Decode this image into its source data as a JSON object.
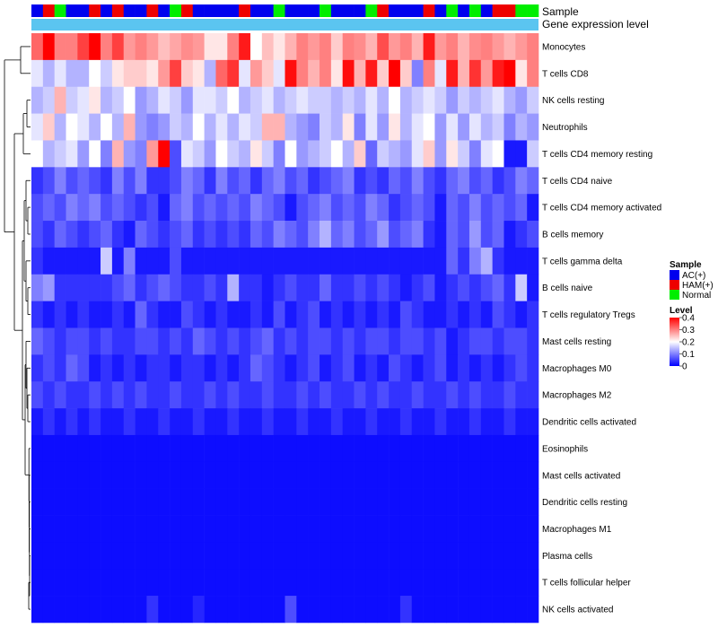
{
  "chart_data": {
    "type": "heatmap",
    "title": "",
    "annotation_labels": {
      "sample": "Sample",
      "expression": "Gene expression level"
    },
    "rows": [
      "Monocytes",
      "T cells CD8",
      "NK cells resting",
      "Neutrophils",
      "T cells CD4 memory resting",
      "T cells CD4 naive",
      "T cells CD4 memory activated",
      "B cells memory",
      "T cells gamma delta",
      "B cells naive",
      "T cells regulatory  Tregs",
      "Mast cells resting",
      "Macrophages M0",
      "Macrophages M2",
      "Dendritic cells activated",
      "Eosinophils",
      "Mast cells activated",
      "Dendritic cells resting",
      "Macrophages M1",
      "Plasma cells",
      "T cells follicular helper",
      "NK cells activated"
    ],
    "sample_groups": [
      "AC(+)",
      "HAM(+)",
      "Normal",
      "AC(+)",
      "AC(+)",
      "HAM(+)",
      "AC(+)",
      "HAM(+)",
      "AC(+)",
      "AC(+)",
      "HAM(+)",
      "AC(+)",
      "Normal",
      "HAM(+)",
      "AC(+)",
      "AC(+)",
      "AC(+)",
      "AC(+)",
      "HAM(+)",
      "AC(+)",
      "AC(+)",
      "Normal",
      "AC(+)",
      "AC(+)",
      "AC(+)",
      "Normal",
      "AC(+)",
      "AC(+)",
      "AC(+)",
      "Normal",
      "HAM(+)",
      "AC(+)",
      "AC(+)",
      "AC(+)",
      "HAM(+)",
      "AC(+)",
      "Normal",
      "AC(+)",
      "Normal",
      "AC(+)",
      "HAM(+)",
      "HAM(+)",
      "Normal",
      "Normal"
    ],
    "values": [
      [
        0.32,
        0.4,
        0.3,
        0.3,
        0.35,
        0.4,
        0.3,
        0.35,
        0.28,
        0.3,
        0.28,
        0.25,
        0.27,
        0.29,
        0.28,
        0.22,
        0.22,
        0.3,
        0.38,
        0.2,
        0.25,
        0.22,
        0.26,
        0.3,
        0.28,
        0.3,
        0.24,
        0.3,
        0.29,
        0.26,
        0.34,
        0.28,
        0.3,
        0.26,
        0.38,
        0.28,
        0.3,
        0.26,
        0.29,
        0.3,
        0.28,
        0.26,
        0.28,
        0.3
      ],
      [
        0.18,
        0.14,
        0.18,
        0.14,
        0.14,
        0.2,
        0.16,
        0.22,
        0.24,
        0.24,
        0.22,
        0.28,
        0.35,
        0.24,
        0.22,
        0.14,
        0.32,
        0.36,
        0.18,
        0.28,
        0.24,
        0.18,
        0.39,
        0.3,
        0.26,
        0.3,
        0.22,
        0.39,
        0.26,
        0.38,
        0.24,
        0.4,
        0.24,
        0.1,
        0.3,
        0.18,
        0.38,
        0.26,
        0.36,
        0.28,
        0.38,
        0.4,
        0.22,
        0.3
      ],
      [
        0.14,
        0.16,
        0.26,
        0.16,
        0.18,
        0.22,
        0.14,
        0.16,
        0.2,
        0.12,
        0.14,
        0.18,
        0.16,
        0.12,
        0.18,
        0.18,
        0.16,
        0.2,
        0.14,
        0.16,
        0.18,
        0.14,
        0.16,
        0.18,
        0.16,
        0.16,
        0.14,
        0.16,
        0.14,
        0.18,
        0.14,
        0.2,
        0.14,
        0.16,
        0.18,
        0.16,
        0.12,
        0.16,
        0.14,
        0.16,
        0.18,
        0.14,
        0.12,
        0.16
      ],
      [
        0.18,
        0.24,
        0.14,
        0.2,
        0.18,
        0.14,
        0.2,
        0.14,
        0.26,
        0.12,
        0.1,
        0.12,
        0.16,
        0.14,
        0.2,
        0.14,
        0.18,
        0.14,
        0.18,
        0.16,
        0.26,
        0.26,
        0.14,
        0.12,
        0.1,
        0.16,
        0.14,
        0.22,
        0.1,
        0.18,
        0.12,
        0.22,
        0.14,
        0.18,
        0.2,
        0.12,
        0.18,
        0.12,
        0.18,
        0.14,
        0.16,
        0.1,
        0.14,
        0.12
      ],
      [
        0.2,
        0.14,
        0.16,
        0.18,
        0.12,
        0.2,
        0.1,
        0.26,
        0.12,
        0.1,
        0.28,
        0.4,
        0.06,
        0.18,
        0.16,
        0.12,
        0.2,
        0.16,
        0.14,
        0.22,
        0.16,
        0.1,
        0.2,
        0.12,
        0.14,
        0.16,
        0.2,
        0.14,
        0.24,
        0.08,
        0.16,
        0.14,
        0.12,
        0.18,
        0.24,
        0.12,
        0.22,
        0.16,
        0.1,
        0.18,
        0.2,
        0.02,
        0.02,
        0.16
      ],
      [
        0.04,
        0.06,
        0.1,
        0.06,
        0.08,
        0.06,
        0.04,
        0.1,
        0.06,
        0.1,
        0.04,
        0.04,
        0.06,
        0.1,
        0.08,
        0.04,
        0.1,
        0.06,
        0.08,
        0.04,
        0.08,
        0.1,
        0.06,
        0.08,
        0.04,
        0.06,
        0.08,
        0.1,
        0.04,
        0.06,
        0.04,
        0.08,
        0.06,
        0.1,
        0.06,
        0.04,
        0.08,
        0.1,
        0.06,
        0.08,
        0.04,
        0.06,
        0.1,
        0.08
      ],
      [
        0.06,
        0.08,
        0.06,
        0.1,
        0.08,
        0.1,
        0.06,
        0.08,
        0.06,
        0.04,
        0.06,
        0.02,
        0.08,
        0.1,
        0.06,
        0.08,
        0.06,
        0.08,
        0.06,
        0.1,
        0.08,
        0.06,
        0.02,
        0.06,
        0.08,
        0.1,
        0.06,
        0.08,
        0.06,
        0.1,
        0.08,
        0.04,
        0.06,
        0.08,
        0.06,
        0.02,
        0.08,
        0.06,
        0.1,
        0.06,
        0.08,
        0.06,
        0.08,
        0.02
      ],
      [
        0.06,
        0.04,
        0.08,
        0.06,
        0.04,
        0.06,
        0.08,
        0.04,
        0.02,
        0.08,
        0.06,
        0.04,
        0.06,
        0.08,
        0.04,
        0.06,
        0.04,
        0.06,
        0.04,
        0.08,
        0.06,
        0.1,
        0.08,
        0.06,
        0.1,
        0.14,
        0.08,
        0.1,
        0.06,
        0.08,
        0.12,
        0.06,
        0.08,
        0.1,
        0.04,
        0.02,
        0.08,
        0.06,
        0.12,
        0.06,
        0.08,
        0.02,
        0.04,
        0.06
      ],
      [
        0.04,
        0.02,
        0.02,
        0.02,
        0.02,
        0.02,
        0.16,
        0.02,
        0.1,
        0.02,
        0.02,
        0.02,
        0.06,
        0.02,
        0.02,
        0.02,
        0.02,
        0.02,
        0.02,
        0.02,
        0.02,
        0.02,
        0.02,
        0.02,
        0.02,
        0.02,
        0.02,
        0.02,
        0.02,
        0.02,
        0.02,
        0.02,
        0.02,
        0.02,
        0.02,
        0.02,
        0.08,
        0.04,
        0.1,
        0.14,
        0.04,
        0.02,
        0.02,
        0.02
      ],
      [
        0.1,
        0.12,
        0.04,
        0.04,
        0.04,
        0.04,
        0.04,
        0.06,
        0.08,
        0.04,
        0.06,
        0.08,
        0.06,
        0.04,
        0.04,
        0.06,
        0.04,
        0.14,
        0.04,
        0.04,
        0.02,
        0.04,
        0.06,
        0.04,
        0.04,
        0.08,
        0.04,
        0.04,
        0.06,
        0.04,
        0.06,
        0.04,
        0.02,
        0.04,
        0.06,
        0.02,
        0.04,
        0.06,
        0.04,
        0.06,
        0.08,
        0.04,
        0.16,
        0.02
      ],
      [
        0.04,
        0.02,
        0.04,
        0.02,
        0.04,
        0.02,
        0.02,
        0.04,
        0.02,
        0.08,
        0.04,
        0.02,
        0.02,
        0.06,
        0.04,
        0.02,
        0.04,
        0.02,
        0.02,
        0.04,
        0.02,
        0.06,
        0.02,
        0.04,
        0.06,
        0.02,
        0.04,
        0.02,
        0.04,
        0.02,
        0.04,
        0.02,
        0.06,
        0.04,
        0.02,
        0.02,
        0.04,
        0.02,
        0.04,
        0.02,
        0.06,
        0.04,
        0.02,
        0.04
      ],
      [
        0.08,
        0.06,
        0.04,
        0.06,
        0.06,
        0.04,
        0.06,
        0.04,
        0.04,
        0.06,
        0.06,
        0.04,
        0.06,
        0.04,
        0.08,
        0.06,
        0.04,
        0.06,
        0.04,
        0.06,
        0.08,
        0.04,
        0.06,
        0.04,
        0.06,
        0.06,
        0.04,
        0.06,
        0.04,
        0.06,
        0.06,
        0.04,
        0.06,
        0.06,
        0.04,
        0.06,
        0.02,
        0.04,
        0.06,
        0.06,
        0.04,
        0.06,
        0.06,
        0.04
      ],
      [
        0.04,
        0.06,
        0.04,
        0.08,
        0.06,
        0.02,
        0.04,
        0.02,
        0.04,
        0.02,
        0.04,
        0.04,
        0.02,
        0.04,
        0.04,
        0.02,
        0.04,
        0.02,
        0.04,
        0.08,
        0.06,
        0.04,
        0.02,
        0.04,
        0.06,
        0.02,
        0.04,
        0.06,
        0.02,
        0.04,
        0.02,
        0.06,
        0.04,
        0.02,
        0.04,
        0.06,
        0.02,
        0.04,
        0.02,
        0.04,
        0.02,
        0.04,
        0.06,
        0.04
      ],
      [
        0.06,
        0.04,
        0.06,
        0.04,
        0.04,
        0.06,
        0.04,
        0.06,
        0.04,
        0.06,
        0.04,
        0.04,
        0.06,
        0.04,
        0.04,
        0.06,
        0.04,
        0.06,
        0.04,
        0.04,
        0.06,
        0.04,
        0.04,
        0.06,
        0.04,
        0.06,
        0.04,
        0.04,
        0.06,
        0.04,
        0.06,
        0.04,
        0.04,
        0.06,
        0.04,
        0.04,
        0.06,
        0.04,
        0.06,
        0.04,
        0.04,
        0.06,
        0.04,
        0.04
      ],
      [
        0.02,
        0.04,
        0.02,
        0.04,
        0.02,
        0.04,
        0.02,
        0.02,
        0.04,
        0.02,
        0.02,
        0.04,
        0.02,
        0.02,
        0.04,
        0.02,
        0.02,
        0.04,
        0.02,
        0.02,
        0.04,
        0.02,
        0.02,
        0.04,
        0.02,
        0.02,
        0.04,
        0.02,
        0.02,
        0.04,
        0.02,
        0.02,
        0.04,
        0.02,
        0.02,
        0.04,
        0.02,
        0.02,
        0.04,
        0.02,
        0.02,
        0.04,
        0.02,
        0.02
      ],
      [
        0.01,
        0.01,
        0.01,
        0.01,
        0.01,
        0.01,
        0.01,
        0.01,
        0.01,
        0.01,
        0.01,
        0.01,
        0.01,
        0.01,
        0.01,
        0.01,
        0.01,
        0.01,
        0.01,
        0.01,
        0.01,
        0.01,
        0.01,
        0.01,
        0.01,
        0.01,
        0.01,
        0.01,
        0.01,
        0.01,
        0.01,
        0.01,
        0.01,
        0.01,
        0.01,
        0.01,
        0.01,
        0.01,
        0.01,
        0.01,
        0.01,
        0.01,
        0.01,
        0.01
      ],
      [
        0.01,
        0.01,
        0.01,
        0.01,
        0.01,
        0.01,
        0.01,
        0.01,
        0.01,
        0.01,
        0.01,
        0.01,
        0.01,
        0.01,
        0.01,
        0.01,
        0.01,
        0.01,
        0.01,
        0.01,
        0.01,
        0.01,
        0.01,
        0.01,
        0.01,
        0.01,
        0.01,
        0.01,
        0.01,
        0.01,
        0.01,
        0.01,
        0.01,
        0.01,
        0.01,
        0.01,
        0.01,
        0.01,
        0.01,
        0.01,
        0.01,
        0.01,
        0.01,
        0.01
      ],
      [
        0.01,
        0.01,
        0.01,
        0.01,
        0.01,
        0.01,
        0.01,
        0.01,
        0.01,
        0.01,
        0.01,
        0.01,
        0.01,
        0.01,
        0.01,
        0.01,
        0.01,
        0.01,
        0.01,
        0.01,
        0.01,
        0.01,
        0.01,
        0.01,
        0.01,
        0.01,
        0.01,
        0.01,
        0.01,
        0.01,
        0.01,
        0.01,
        0.01,
        0.01,
        0.01,
        0.01,
        0.01,
        0.01,
        0.01,
        0.01,
        0.01,
        0.01,
        0.01,
        0.01
      ],
      [
        0.01,
        0.01,
        0.01,
        0.01,
        0.01,
        0.01,
        0.01,
        0.01,
        0.01,
        0.01,
        0.01,
        0.01,
        0.01,
        0.01,
        0.01,
        0.01,
        0.01,
        0.01,
        0.01,
        0.01,
        0.01,
        0.01,
        0.01,
        0.01,
        0.01,
        0.01,
        0.01,
        0.01,
        0.01,
        0.01,
        0.01,
        0.01,
        0.01,
        0.01,
        0.01,
        0.01,
        0.01,
        0.01,
        0.01,
        0.01,
        0.01,
        0.01,
        0.01,
        0.01
      ],
      [
        0.01,
        0.01,
        0.01,
        0.01,
        0.01,
        0.01,
        0.01,
        0.01,
        0.01,
        0.01,
        0.01,
        0.01,
        0.01,
        0.01,
        0.01,
        0.01,
        0.01,
        0.01,
        0.01,
        0.01,
        0.01,
        0.01,
        0.01,
        0.01,
        0.01,
        0.01,
        0.01,
        0.01,
        0.01,
        0.01,
        0.01,
        0.01,
        0.01,
        0.01,
        0.01,
        0.01,
        0.01,
        0.01,
        0.01,
        0.01,
        0.01,
        0.01,
        0.01,
        0.01
      ],
      [
        0.01,
        0.01,
        0.01,
        0.01,
        0.01,
        0.01,
        0.01,
        0.01,
        0.01,
        0.01,
        0.01,
        0.01,
        0.01,
        0.01,
        0.01,
        0.01,
        0.01,
        0.01,
        0.01,
        0.01,
        0.01,
        0.01,
        0.01,
        0.01,
        0.01,
        0.01,
        0.01,
        0.01,
        0.01,
        0.01,
        0.01,
        0.01,
        0.01,
        0.01,
        0.01,
        0.01,
        0.01,
        0.01,
        0.01,
        0.01,
        0.01,
        0.01,
        0.01,
        0.01
      ],
      [
        0.01,
        0.01,
        0.01,
        0.01,
        0.01,
        0.01,
        0.01,
        0.01,
        0.01,
        0.01,
        0.04,
        0.01,
        0.01,
        0.01,
        0.03,
        0.01,
        0.01,
        0.01,
        0.01,
        0.01,
        0.01,
        0.01,
        0.06,
        0.01,
        0.01,
        0.01,
        0.01,
        0.01,
        0.01,
        0.01,
        0.01,
        0.01,
        0.04,
        0.01,
        0.01,
        0.01,
        0.01,
        0.01,
        0.01,
        0.01,
        0.01,
        0.01,
        0.01,
        0.01
      ]
    ],
    "color_scale": {
      "min": 0,
      "max": 0.4,
      "low": "#0000ff",
      "mid": "#ffffff",
      "high": "#ff0000"
    },
    "legend": {
      "sample_title": "Sample",
      "sample_items": [
        {
          "label": "AC(+)",
          "color": "#0000ee"
        },
        {
          "label": "HAM(+)",
          "color": "#ee0000"
        },
        {
          "label": "Normal",
          "color": "#00ee00"
        }
      ],
      "level_title": "Level",
      "level_ticks": [
        "0.4",
        "0.3",
        "0.2",
        "0.1",
        "0"
      ],
      "level_values": [
        0.4,
        0.3,
        0.2,
        0.1,
        0
      ],
      "expression_color": "#5bc5f0"
    }
  }
}
